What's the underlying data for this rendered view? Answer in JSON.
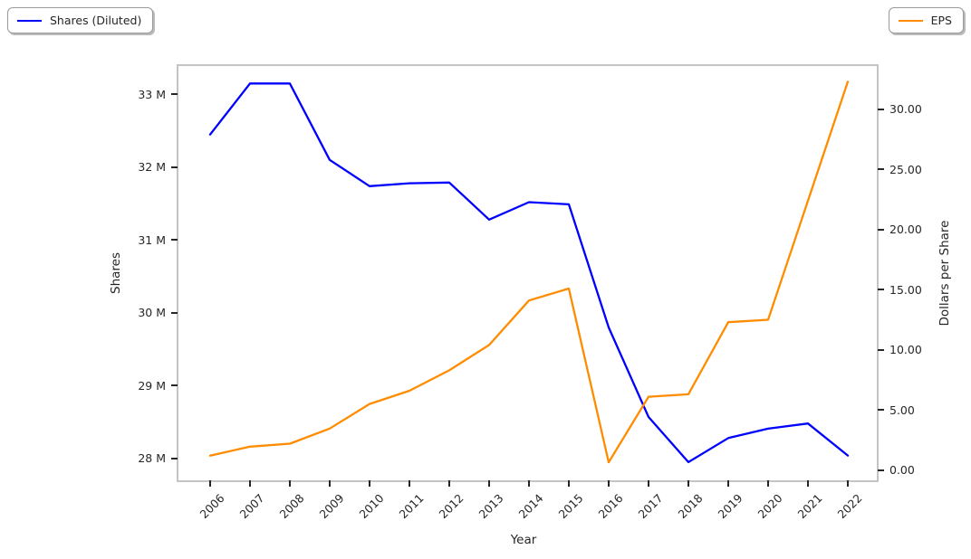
{
  "legend": {
    "left": {
      "label": "Shares (Diluted)",
      "color": "#0000ff"
    },
    "right": {
      "label": "EPS",
      "color": "#ff8c00"
    }
  },
  "chart_data": {
    "type": "line",
    "title": "",
    "xlabel": "Year",
    "ylabel_left": "Shares",
    "ylabel_right": "Dollars per Share",
    "grid": false,
    "legend_position": "two fancy boxes at top-left and top-right corners, outside axes",
    "x": [
      2006,
      2007,
      2008,
      2009,
      2010,
      2011,
      2012,
      2013,
      2014,
      2015,
      2016,
      2017,
      2018,
      2019,
      2020,
      2021,
      2022
    ],
    "x_tick_labels": [
      "2006",
      "2007",
      "2008",
      "2009",
      "2010",
      "2011",
      "2012",
      "2013",
      "2014",
      "2015",
      "2016",
      "2017",
      "2018",
      "2019",
      "2020",
      "2021",
      "2022"
    ],
    "series": [
      {
        "name": "Shares (Diluted)",
        "axis": "left",
        "color": "#0000ff",
        "unit": "millions of shares",
        "values": [
          32.45,
          33.15,
          33.15,
          32.1,
          31.74,
          31.78,
          31.79,
          31.28,
          31.52,
          31.49,
          29.8,
          28.57,
          27.95,
          28.28,
          28.41,
          28.48,
          28.04
        ]
      },
      {
        "name": "EPS",
        "axis": "right",
        "color": "#ff8c00",
        "unit": "dollars per share",
        "values": [
          1.2,
          1.95,
          2.2,
          3.45,
          5.5,
          6.6,
          8.3,
          10.4,
          14.1,
          15.1,
          0.65,
          6.1,
          6.3,
          12.3,
          12.5,
          22.4,
          32.3
        ]
      }
    ],
    "left_axis": {
      "tick_labels": [
        "33 M",
        "32 M",
        "31 M",
        "30 M",
        "29 M",
        "28 M"
      ],
      "tick_values": [
        33,
        32,
        31,
        30,
        29,
        28
      ],
      "range": [
        27.7,
        33.39
      ]
    },
    "right_axis": {
      "tick_labels": [
        "30.00",
        "25.00",
        "20.00",
        "15.00",
        "10.00",
        "5.00",
        "0.00"
      ],
      "tick_values": [
        30,
        25,
        20,
        15,
        10,
        5,
        0
      ],
      "range": [
        -0.85,
        33.6
      ]
    }
  }
}
